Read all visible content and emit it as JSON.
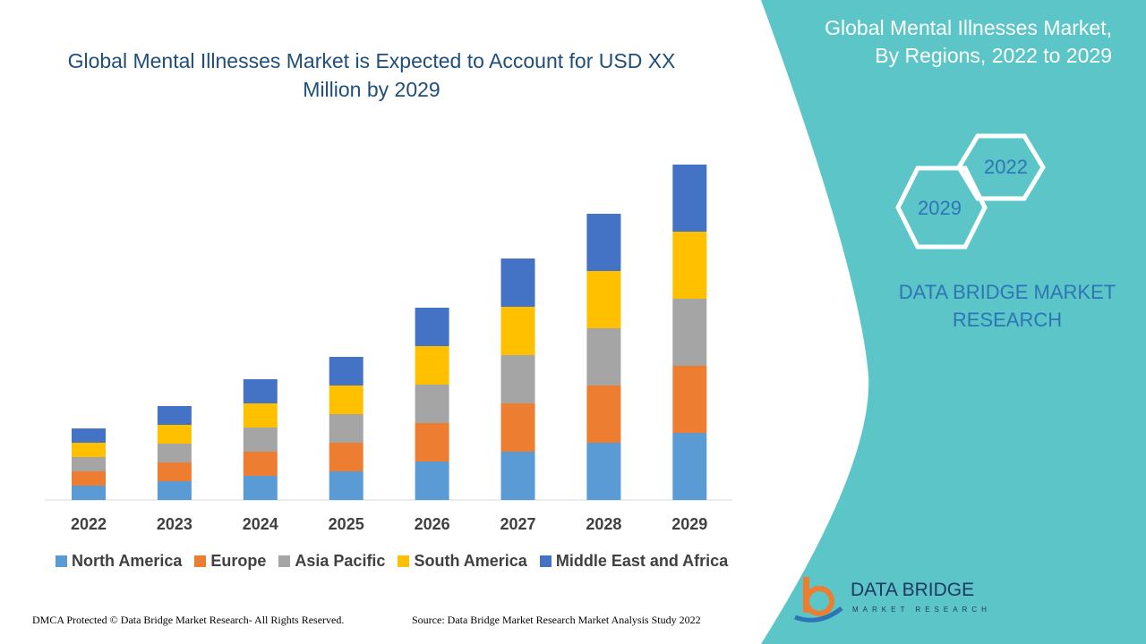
{
  "title": "Global Mental Illnesses Market is Expected to Account for USD XX Million by 2029",
  "side_title": "Global Mental Illnesses Market, By Regions, 2022 to 2029",
  "hexagons": [
    "2022",
    "2029"
  ],
  "brand": "DATA BRIDGE MARKET RESEARCH",
  "footer_left": "DMCA Protected © Data Bridge Market Research- All Rights Reserved.",
  "footer_right": "Source: Data Bridge Market Research Market Analysis Study 2022",
  "logo": {
    "name": "DATA BRIDGE",
    "sub": "MARKET RESEARCH"
  },
  "colors": {
    "panel": "#5BC5C8",
    "title": "#1f4e79"
  },
  "chart_data": {
    "type": "bar",
    "stacked": true,
    "categories": [
      "2022",
      "2023",
      "2024",
      "2025",
      "2026",
      "2027",
      "2028",
      "2029"
    ],
    "series": [
      {
        "name": "North America",
        "color": "#5B9BD5",
        "values": [
          16,
          21,
          27,
          32,
          43,
          54,
          64,
          75
        ]
      },
      {
        "name": "Europe",
        "color": "#ED7D31",
        "values": [
          16,
          21,
          27,
          32,
          43,
          54,
          64,
          75
        ]
      },
      {
        "name": "Asia Pacific",
        "color": "#A5A5A5",
        "values": [
          16,
          21,
          27,
          32,
          43,
          54,
          64,
          75
        ]
      },
      {
        "name": "South America",
        "color": "#FFC000",
        "values": [
          16,
          21,
          27,
          32,
          43,
          54,
          64,
          75
        ]
      },
      {
        "name": "Middle East and Africa",
        "color": "#4472C4",
        "values": [
          16,
          21,
          27,
          32,
          43,
          54,
          64,
          75
        ]
      }
    ],
    "legend": "bottom",
    "grid": false,
    "y_axis_shown": false
  }
}
